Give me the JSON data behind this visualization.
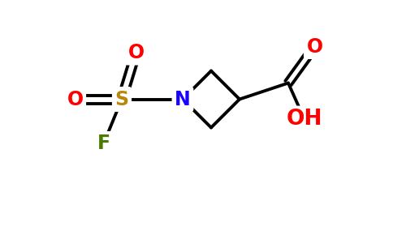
{
  "bg_color": "#ffffff",
  "bond_color": "#000000",
  "bond_width": 2.8,
  "atom_colors": {
    "O": "#ff0000",
    "N": "#1a00ff",
    "S": "#b8860b",
    "F": "#4a7a00",
    "C": "#000000"
  },
  "font_size": 17,
  "font_weight": "bold",
  "figsize": [
    4.84,
    3.0
  ],
  "dpi": 100,
  "xlim": [
    0,
    9.68
  ],
  "ylim": [
    0,
    6.0
  ]
}
